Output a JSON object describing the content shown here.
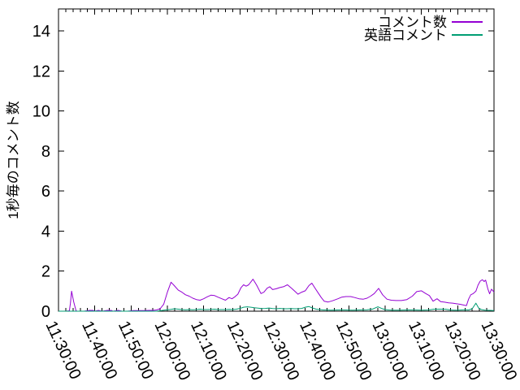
{
  "chart_data": {
    "type": "line",
    "title": "",
    "xlabel": "",
    "ylabel": "1秒毎のコメント数",
    "x_axis": {
      "start_label": "11:30:00",
      "end_label": "13:30:00",
      "tick_labels": [
        "11:30:00",
        "11:40:00",
        "11:50:00",
        "12:00:00",
        "12:10:00",
        "12:20:00",
        "12:30:00",
        "12:40:00",
        "12:50:00",
        "13:00:00",
        "13:10:00",
        "13:20:00",
        "13:30:00"
      ],
      "major_tick_step_minutes": 10,
      "minor_tick_step_minutes": 2,
      "range_minutes": [
        0,
        120
      ],
      "labels_rotated": true
    },
    "y_axis": {
      "tick_values": [
        0,
        2,
        4,
        6,
        8,
        10,
        12,
        14
      ],
      "ylim": [
        0,
        15.1
      ],
      "grid": false
    },
    "legend": {
      "position": "top-right-inside",
      "border": false
    },
    "series": [
      {
        "name": "コメント数",
        "color": "#9400d3",
        "points_minutes_value": [
          [
            0,
            0
          ],
          [
            2,
            0
          ],
          [
            3,
            0.02
          ],
          [
            3.3,
            0.4
          ],
          [
            3.6,
            1.0
          ],
          [
            4.2,
            0.45
          ],
          [
            4.8,
            0.05
          ],
          [
            5,
            0
          ],
          [
            7,
            0
          ],
          [
            8.5,
            0.04
          ],
          [
            9.5,
            0.04
          ],
          [
            10,
            0
          ],
          [
            11,
            0.04
          ],
          [
            12,
            0
          ],
          [
            13.5,
            0.04
          ],
          [
            14.5,
            0.04
          ],
          [
            15,
            0
          ],
          [
            16.5,
            0.04
          ],
          [
            17.5,
            0
          ],
          [
            19,
            0
          ],
          [
            20.5,
            0.03
          ],
          [
            22,
            0.03
          ],
          [
            23.5,
            0.03
          ],
          [
            25,
            0.04
          ],
          [
            26,
            0.04
          ],
          [
            27,
            0.06
          ],
          [
            28,
            0.12
          ],
          [
            29,
            0.35
          ],
          [
            30,
            0.95
          ],
          [
            31,
            1.45
          ],
          [
            31.8,
            1.3
          ],
          [
            33,
            1.05
          ],
          [
            34,
            0.95
          ],
          [
            35,
            0.82
          ],
          [
            36,
            0.75
          ],
          [
            37,
            0.65
          ],
          [
            38,
            0.58
          ],
          [
            39,
            0.55
          ],
          [
            40,
            0.62
          ],
          [
            41,
            0.72
          ],
          [
            42,
            0.8
          ],
          [
            43,
            0.78
          ],
          [
            44,
            0.7
          ],
          [
            45,
            0.62
          ],
          [
            46,
            0.55
          ],
          [
            47,
            0.68
          ],
          [
            47.8,
            0.62
          ],
          [
            48.6,
            0.72
          ],
          [
            49.4,
            0.85
          ],
          [
            50.3,
            1.18
          ],
          [
            51,
            1.32
          ],
          [
            51.7,
            1.25
          ],
          [
            52.4,
            1.32
          ],
          [
            53.6,
            1.6
          ],
          [
            54.6,
            1.3
          ],
          [
            55.8,
            0.88
          ],
          [
            56.6,
            0.95
          ],
          [
            57.5,
            1.15
          ],
          [
            58.2,
            1.22
          ],
          [
            59,
            1.08
          ],
          [
            60,
            1.12
          ],
          [
            61,
            1.18
          ],
          [
            62,
            1.22
          ],
          [
            63.1,
            1.32
          ],
          [
            64.2,
            1.15
          ],
          [
            65.1,
            1.0
          ],
          [
            66,
            0.85
          ],
          [
            67,
            0.95
          ],
          [
            68,
            1.02
          ],
          [
            69,
            1.28
          ],
          [
            69.8,
            1.4
          ],
          [
            70.8,
            1.12
          ],
          [
            71.6,
            0.9
          ],
          [
            72.4,
            0.68
          ],
          [
            73.2,
            0.5
          ],
          [
            74.3,
            0.46
          ],
          [
            75.5,
            0.52
          ],
          [
            77,
            0.62
          ],
          [
            78,
            0.7
          ],
          [
            79.2,
            0.73
          ],
          [
            80.5,
            0.73
          ],
          [
            81.6,
            0.68
          ],
          [
            82.8,
            0.62
          ],
          [
            84,
            0.6
          ],
          [
            85,
            0.65
          ],
          [
            86,
            0.75
          ],
          [
            87,
            0.88
          ],
          [
            88.2,
            1.14
          ],
          [
            89.3,
            0.82
          ],
          [
            90.5,
            0.6
          ],
          [
            91.7,
            0.55
          ],
          [
            93,
            0.53
          ],
          [
            94.5,
            0.53
          ],
          [
            96,
            0.58
          ],
          [
            97.5,
            0.75
          ],
          [
            98.7,
            0.98
          ],
          [
            100,
            1.02
          ],
          [
            101.2,
            0.88
          ],
          [
            102.2,
            0.78
          ],
          [
            103.2,
            0.5
          ],
          [
            104.3,
            0.62
          ],
          [
            105.3,
            0.48
          ],
          [
            106.4,
            0.45
          ],
          [
            107.5,
            0.42
          ],
          [
            108.6,
            0.4
          ],
          [
            109.7,
            0.37
          ],
          [
            110.8,
            0.34
          ],
          [
            111.8,
            0.3
          ],
          [
            112.4,
            0.28
          ],
          [
            113,
            0.6
          ],
          [
            113.6,
            0.82
          ],
          [
            114.3,
            0.88
          ],
          [
            115,
            1.0
          ],
          [
            115.6,
            1.3
          ],
          [
            116.2,
            1.5
          ],
          [
            116.8,
            1.57
          ],
          [
            117.3,
            1.48
          ],
          [
            117.7,
            1.55
          ],
          [
            118.3,
            1.12
          ],
          [
            118.8,
            0.87
          ],
          [
            119.3,
            1.1
          ],
          [
            119.7,
            1.02
          ],
          [
            120,
            0.95
          ]
        ]
      },
      {
        "name": "英語コメント",
        "color": "#009e73",
        "points_minutes_value": [
          [
            0,
            0
          ],
          [
            27,
            0
          ],
          [
            28,
            0.02
          ],
          [
            29,
            0.05
          ],
          [
            30,
            0.07
          ],
          [
            31,
            0.09
          ],
          [
            32,
            0.12
          ],
          [
            33,
            0.1
          ],
          [
            34,
            0.08
          ],
          [
            35,
            0.07
          ],
          [
            36,
            0.08
          ],
          [
            37,
            0.07
          ],
          [
            38,
            0.08
          ],
          [
            39,
            0.1
          ],
          [
            40,
            0.08
          ],
          [
            41,
            0.08
          ],
          [
            42,
            0.09
          ],
          [
            43,
            0.1
          ],
          [
            44,
            0.08
          ],
          [
            45,
            0.08
          ],
          [
            46,
            0.08
          ],
          [
            47,
            0.09
          ],
          [
            48,
            0.08
          ],
          [
            49,
            0.1
          ],
          [
            50,
            0.14
          ],
          [
            51,
            0.2
          ],
          [
            52,
            0.22
          ],
          [
            53,
            0.2
          ],
          [
            54,
            0.17
          ],
          [
            55,
            0.15
          ],
          [
            56,
            0.13
          ],
          [
            57,
            0.14
          ],
          [
            58,
            0.16
          ],
          [
            59,
            0.13
          ],
          [
            60,
            0.12
          ],
          [
            61,
            0.14
          ],
          [
            62,
            0.12
          ],
          [
            63,
            0.12
          ],
          [
            64,
            0.13
          ],
          [
            65,
            0.12
          ],
          [
            66,
            0.12
          ],
          [
            67,
            0.14
          ],
          [
            68,
            0.2
          ],
          [
            69,
            0.23
          ],
          [
            70,
            0.16
          ],
          [
            71,
            0.1
          ],
          [
            72,
            0.08
          ],
          [
            73,
            0.06
          ],
          [
            74,
            0.06
          ],
          [
            75,
            0.05
          ],
          [
            77,
            0.06
          ],
          [
            79,
            0.06
          ],
          [
            81,
            0.05
          ],
          [
            83,
            0.06
          ],
          [
            85,
            0.07
          ],
          [
            86.5,
            0.1
          ],
          [
            88,
            0.22
          ],
          [
            89,
            0.14
          ],
          [
            90,
            0.08
          ],
          [
            91,
            0.06
          ],
          [
            92,
            0.05
          ],
          [
            94,
            0.05
          ],
          [
            96,
            0.06
          ],
          [
            98,
            0.06
          ],
          [
            100,
            0.05
          ],
          [
            102,
            0.06
          ],
          [
            103.5,
            0.1
          ],
          [
            105,
            0.1
          ],
          [
            106.5,
            0.1
          ],
          [
            108,
            0.06
          ],
          [
            109,
            0.05
          ],
          [
            110,
            0.05
          ],
          [
            111,
            0.06
          ],
          [
            112,
            0.07
          ],
          [
            113,
            0.06
          ],
          [
            114,
            0.12
          ],
          [
            115,
            0.4
          ],
          [
            115.8,
            0.15
          ],
          [
            116.5,
            0.08
          ],
          [
            117.5,
            0.05
          ],
          [
            119,
            0.04
          ],
          [
            120,
            0.03
          ]
        ]
      }
    ]
  }
}
